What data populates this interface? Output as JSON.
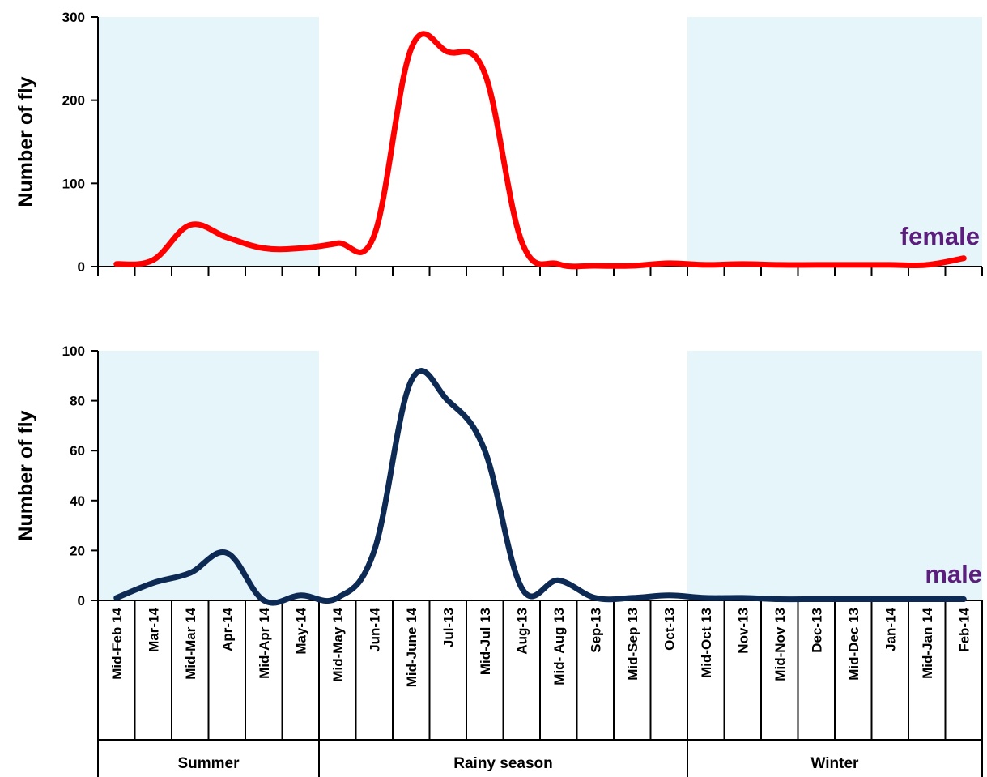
{
  "colors": {
    "band": "#e6f5fa",
    "female": "#ff0000",
    "male": "#0d2a55",
    "label": "#5b1e7d",
    "axis": "#000000"
  },
  "seasons": [
    {
      "name": "Summer",
      "from": 0,
      "to": 6,
      "shaded": true
    },
    {
      "name": "Rainy season",
      "from": 6,
      "to": 16,
      "shaded": false
    },
    {
      "name": "Winter",
      "from": 16,
      "to": 24,
      "shaded": true
    }
  ],
  "chart_data": [
    {
      "type": "line",
      "ylabel": "Number of fly",
      "ylim": [
        0,
        300
      ],
      "yticks": [
        0,
        100,
        200,
        300
      ],
      "categories": [
        "Mid-Feb 14",
        "Mar-14",
        "Mid-Mar 14",
        "Apr-14",
        "Mid-Apr 14",
        "May-14",
        "Mid-May 14",
        "Jun-14",
        "Mid-June 14",
        "Jul-13",
        "Mid-Jul 13",
        "Aug-13",
        "Mid- Aug 13",
        "Sep-13",
        "Mid-Sep 13",
        "Oct-13",
        "Mid-Oct 13",
        "Nov-13",
        "Mid-Nov 13",
        "Dec-13",
        "Mid-Dec 13",
        "Jan-14",
        "Mid-Jan 14",
        "Feb-14"
      ],
      "series": [
        {
          "name": "female",
          "values": [
            3,
            8,
            50,
            35,
            22,
            22,
            28,
            38,
            262,
            258,
            232,
            30,
            3,
            1,
            1,
            4,
            2,
            3,
            2,
            2,
            2,
            2,
            2,
            10
          ]
        }
      ]
    },
    {
      "type": "line",
      "ylabel": "Number of fly",
      "ylim": [
        0,
        100
      ],
      "yticks": [
        0,
        20,
        40,
        60,
        80,
        100
      ],
      "categories": [
        "Mid-Feb 14",
        "Mar-14",
        "Mid-Mar 14",
        "Apr-14",
        "Mid-Apr 14",
        "May-14",
        "Mid-May 14",
        "Jun-14",
        "Mid-June 14",
        "Jul-13",
        "Mid-Jul 13",
        "Aug-13",
        "Mid- Aug 13",
        "Sep-13",
        "Mid-Sep 13",
        "Oct-13",
        "Mid-Oct 13",
        "Nov-13",
        "Mid-Nov 13",
        "Dec-13",
        "Mid-Dec 13",
        "Jan-14",
        "Mid-Jan 14",
        "Feb-14"
      ],
      "series": [
        {
          "name": "male",
          "values": [
            1,
            7,
            11,
            19,
            0,
            2,
            1,
            20,
            88,
            80,
            60,
            5,
            8,
            1,
            1,
            2,
            1,
            1,
            0.5,
            0.5,
            0.5,
            0.5,
            0.5,
            0.5
          ]
        }
      ]
    }
  ]
}
